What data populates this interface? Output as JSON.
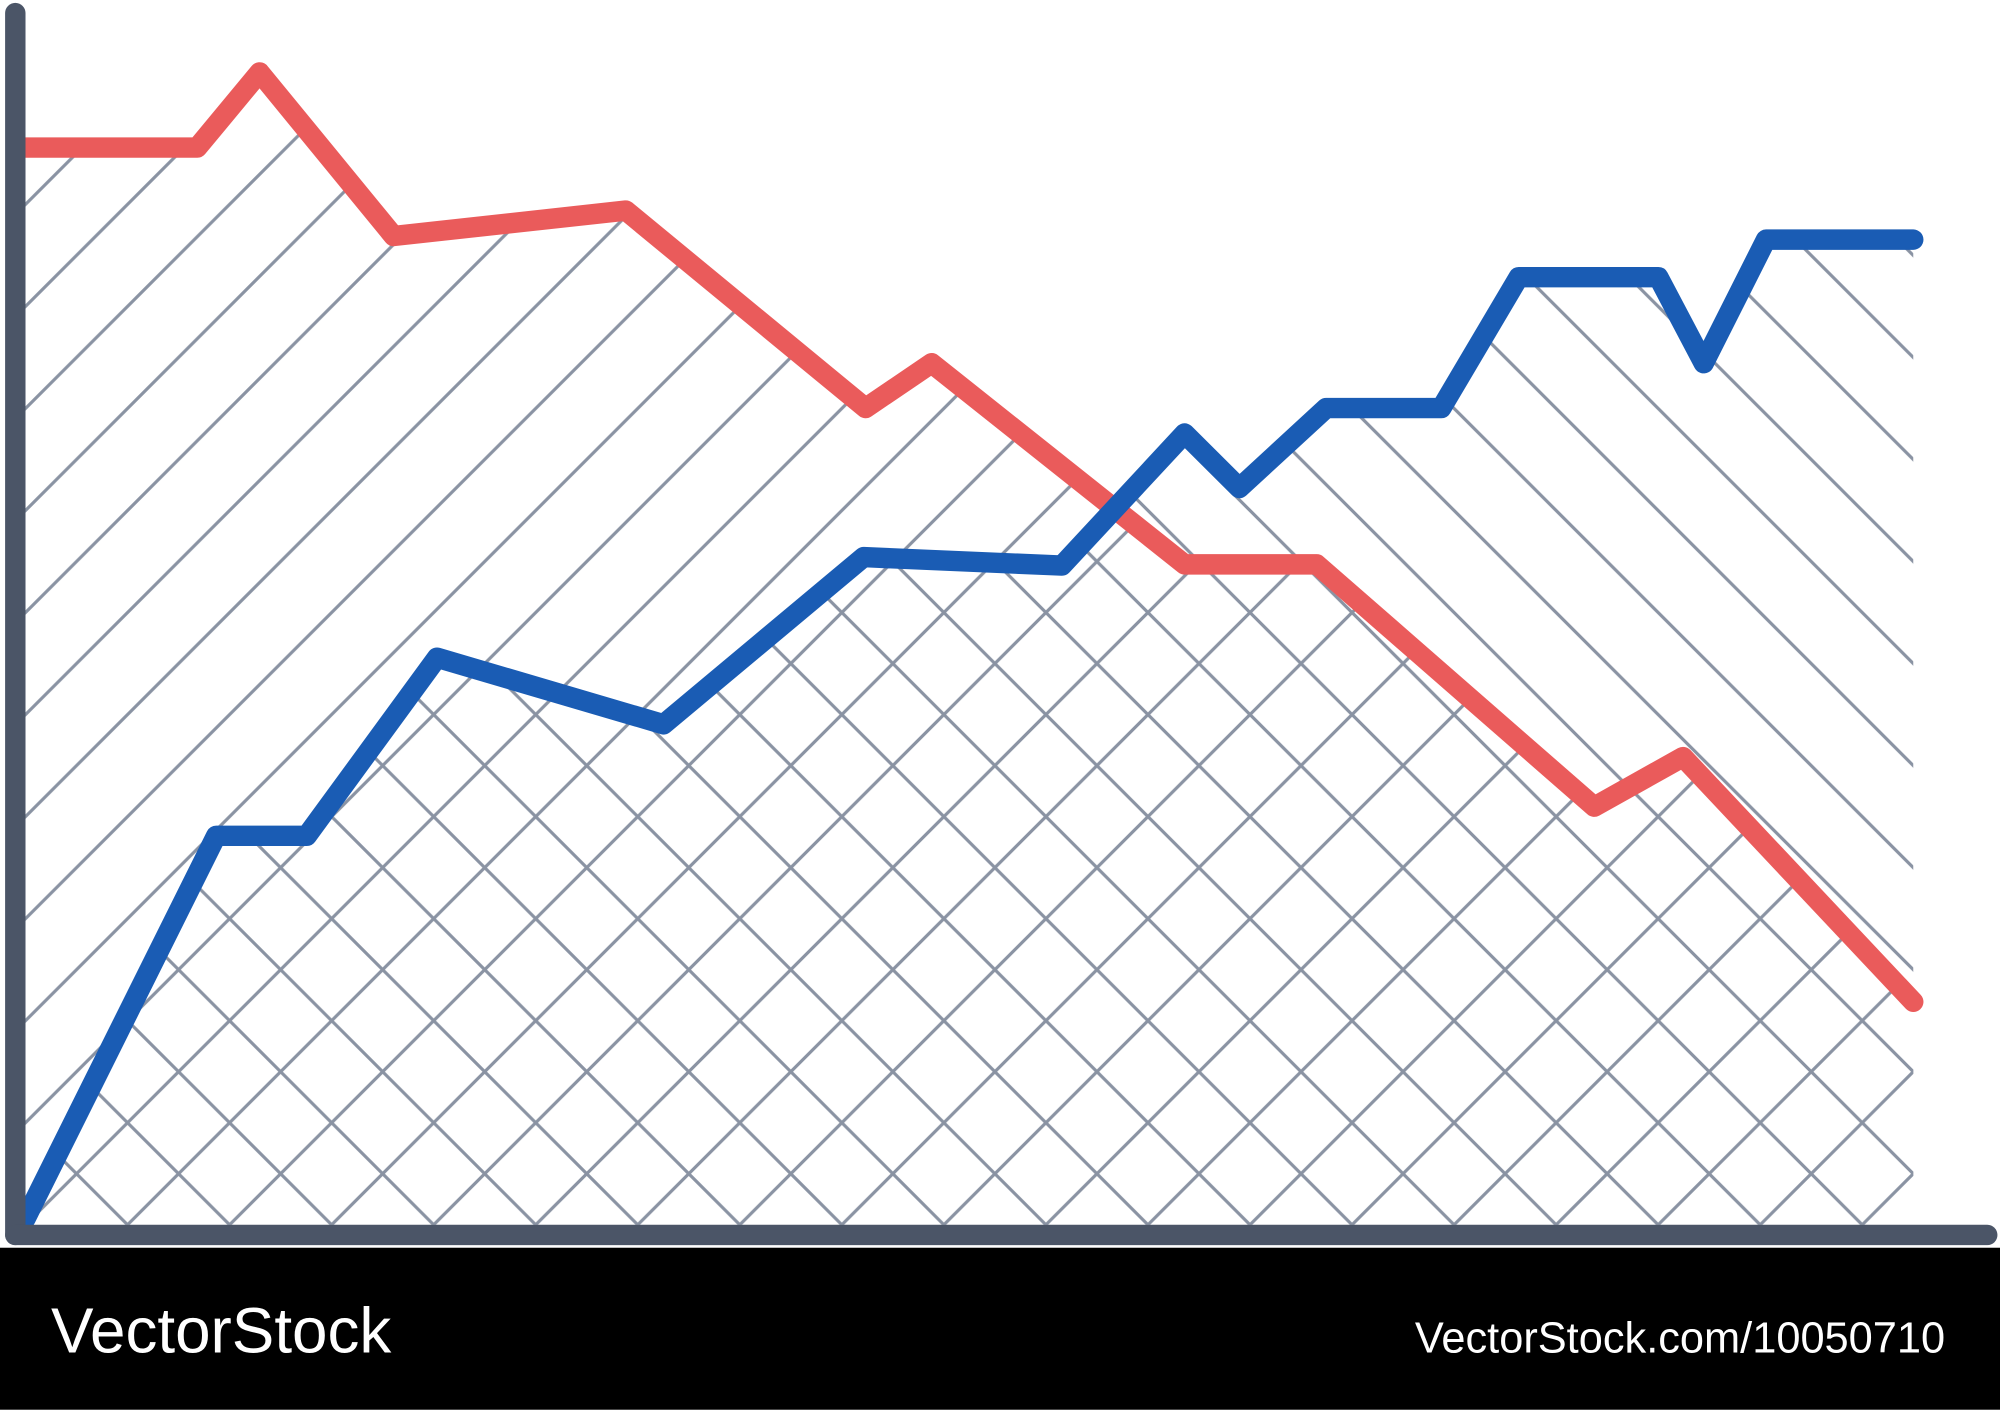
{
  "chart_data": {
    "type": "line",
    "xlim": [
      0,
      100
    ],
    "ylim": [
      0,
      100
    ],
    "series": [
      {
        "color": "#ea5b5b",
        "hatch": "/",
        "x": [
          0,
          9.1,
          12.4,
          19.5,
          31.8,
          44.5,
          48,
          61.4,
          68.4,
          83.1,
          87.8,
          100
        ],
        "values": [
          88.9,
          88.9,
          95.1,
          81.6,
          83.7,
          67.4,
          71.1,
          54.5,
          54.5,
          34.5,
          38.6,
          18.4
        ]
      },
      {
        "color": "#1a5cb4",
        "hatch": "\\",
        "x": [
          0,
          10.1,
          14.9,
          21.8,
          33.8,
          44.4,
          54.9,
          61.4,
          64.3,
          68.9,
          75,
          79.1,
          86.5,
          88.9,
          92.2,
          100
        ],
        "values": [
          0.5,
          32.1,
          32.1,
          46.8,
          41.3,
          55.1,
          54.4,
          65.3,
          60.8,
          67.4,
          67.4,
          78.2,
          78.2,
          71.1,
          81.3,
          81.3
        ]
      }
    ]
  },
  "watermark": {
    "brand": "VectorStock",
    "url": "VectorStock.com/10050710"
  }
}
